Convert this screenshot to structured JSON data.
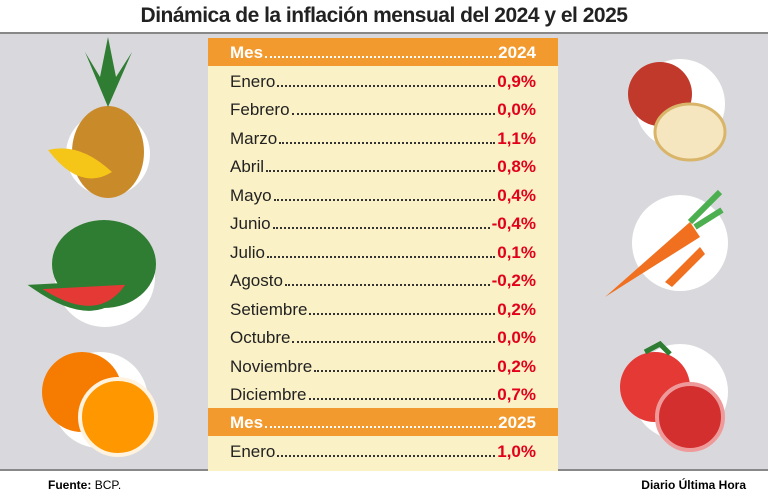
{
  "title": "Dinámica de la inflación mensual del 2024 y el 2025",
  "table": {
    "sections": [
      {
        "header": [
          "Mes",
          "2024"
        ],
        "rows": [
          [
            "Enero",
            "0,9%"
          ],
          [
            "Febrero",
            "0,0%"
          ],
          [
            "Marzo",
            "1,1%"
          ],
          [
            "Abril",
            "0,8%"
          ],
          [
            "Mayo",
            "0,4%"
          ],
          [
            "Junio",
            "-0,4%"
          ],
          [
            "Julio",
            "0,1%"
          ],
          [
            "Agosto",
            "-0,2%"
          ],
          [
            "Setiembre",
            "0,2%"
          ],
          [
            "Octubre",
            "0,0%"
          ],
          [
            "Noviembre",
            "0,2%"
          ],
          [
            "Diciembre",
            "0,7%"
          ]
        ]
      },
      {
        "header": [
          "Mes",
          "2025"
        ],
        "rows": [
          [
            "Enero",
            "1,0%"
          ]
        ]
      }
    ]
  },
  "footer": {
    "source_label": "Fuente:",
    "source": "BCP.",
    "credit": "Diario Última Hora"
  }
}
